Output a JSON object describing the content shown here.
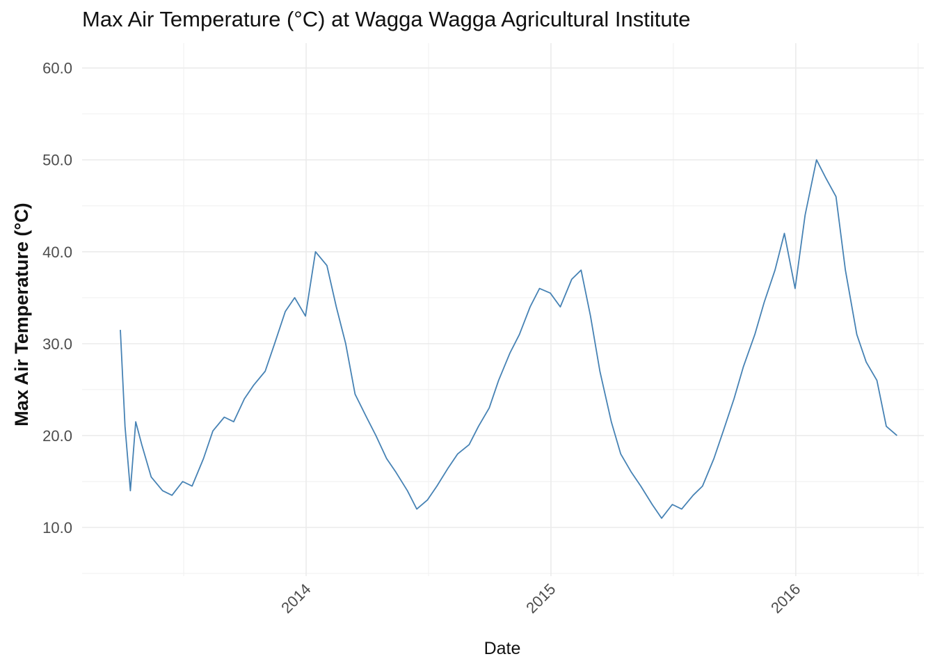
{
  "chart_data": {
    "type": "line",
    "title": "Max Air Temperature (°C) at Wagga Wagga Agricultural Institute",
    "xlabel": "Date",
    "ylabel": "Max Air Temperature (°C)",
    "ylim": [
      4.7,
      62.7
    ],
    "xlim": [
      "2013-02-01",
      "2016-07-10"
    ],
    "y_ticks": [
      10,
      20,
      30,
      40,
      50,
      60
    ],
    "y_tick_labels": [
      "10.0",
      "20.0",
      "30.0",
      "40.0",
      "50.0",
      "60.0"
    ],
    "x_ticks": [
      "2014-01-01",
      "2015-01-01",
      "2016-01-01"
    ],
    "x_tick_labels": [
      "2014",
      "2015",
      "2016"
    ],
    "grid": true,
    "legend": "none",
    "line_color": "#4682B4",
    "series": [
      {
        "x": [
          "2013-03-30",
          "2013-04-06",
          "2013-04-14",
          "2013-04-22",
          "2013-05-01",
          "2013-05-15",
          "2013-06-01",
          "2013-06-15",
          "2013-07-01",
          "2013-07-15",
          "2013-08-01",
          "2013-08-15",
          "2013-09-01",
          "2013-09-15",
          "2013-10-01",
          "2013-10-15",
          "2013-11-01",
          "2013-11-15",
          "2013-12-01",
          "2013-12-15",
          "2013-12-31",
          "2014-01-15",
          "2014-02-01",
          "2014-02-15",
          "2014-03-01",
          "2014-03-15",
          "2014-04-01",
          "2014-04-15",
          "2014-05-01",
          "2014-05-15",
          "2014-06-01",
          "2014-06-15",
          "2014-07-01",
          "2014-07-15",
          "2014-08-01",
          "2014-08-15",
          "2014-09-01",
          "2014-09-15",
          "2014-10-01",
          "2014-10-15",
          "2014-11-01",
          "2014-11-15",
          "2014-12-01",
          "2014-12-15",
          "2014-12-31",
          "2015-01-15",
          "2015-02-01",
          "2015-02-15",
          "2015-03-01",
          "2015-03-15",
          "2015-04-01",
          "2015-04-15",
          "2015-05-01",
          "2015-05-15",
          "2015-06-01",
          "2015-06-15",
          "2015-07-01",
          "2015-07-15",
          "2015-08-01",
          "2015-08-15",
          "2015-09-01",
          "2015-09-15",
          "2015-10-01",
          "2015-10-15",
          "2015-11-01",
          "2015-11-15",
          "2015-12-01",
          "2015-12-15",
          "2015-12-31",
          "2016-01-15",
          "2016-02-01",
          "2016-02-15",
          "2016-03-01",
          "2016-03-15",
          "2016-04-01",
          "2016-04-15",
          "2016-05-01",
          "2016-05-15",
          "2016-05-31"
        ],
        "y": [
          31.5,
          21.0,
          14.0,
          21.5,
          19.0,
          15.5,
          14.0,
          13.5,
          15.0,
          14.5,
          17.5,
          20.5,
          22.0,
          21.5,
          24.0,
          25.5,
          27.0,
          30.0,
          33.5,
          35.0,
          33.0,
          40.0,
          38.5,
          34.0,
          30.0,
          24.5,
          22.0,
          20.0,
          17.5,
          16.0,
          14.0,
          12.0,
          13.0,
          14.5,
          16.5,
          18.0,
          19.0,
          21.0,
          23.0,
          26.0,
          29.0,
          31.0,
          34.0,
          36.0,
          35.5,
          34.0,
          37.0,
          38.0,
          33.0,
          27.0,
          21.5,
          18.0,
          16.0,
          14.5,
          12.5,
          11.0,
          12.5,
          12.0,
          13.5,
          14.5,
          17.5,
          20.5,
          24.0,
          27.5,
          31.0,
          34.5,
          38.0,
          42.0,
          36.0,
          44.0,
          50.0,
          48.0,
          46.0,
          38.0,
          31.0,
          28.0,
          26.0,
          21.0,
          20.0
        ]
      }
    ]
  }
}
